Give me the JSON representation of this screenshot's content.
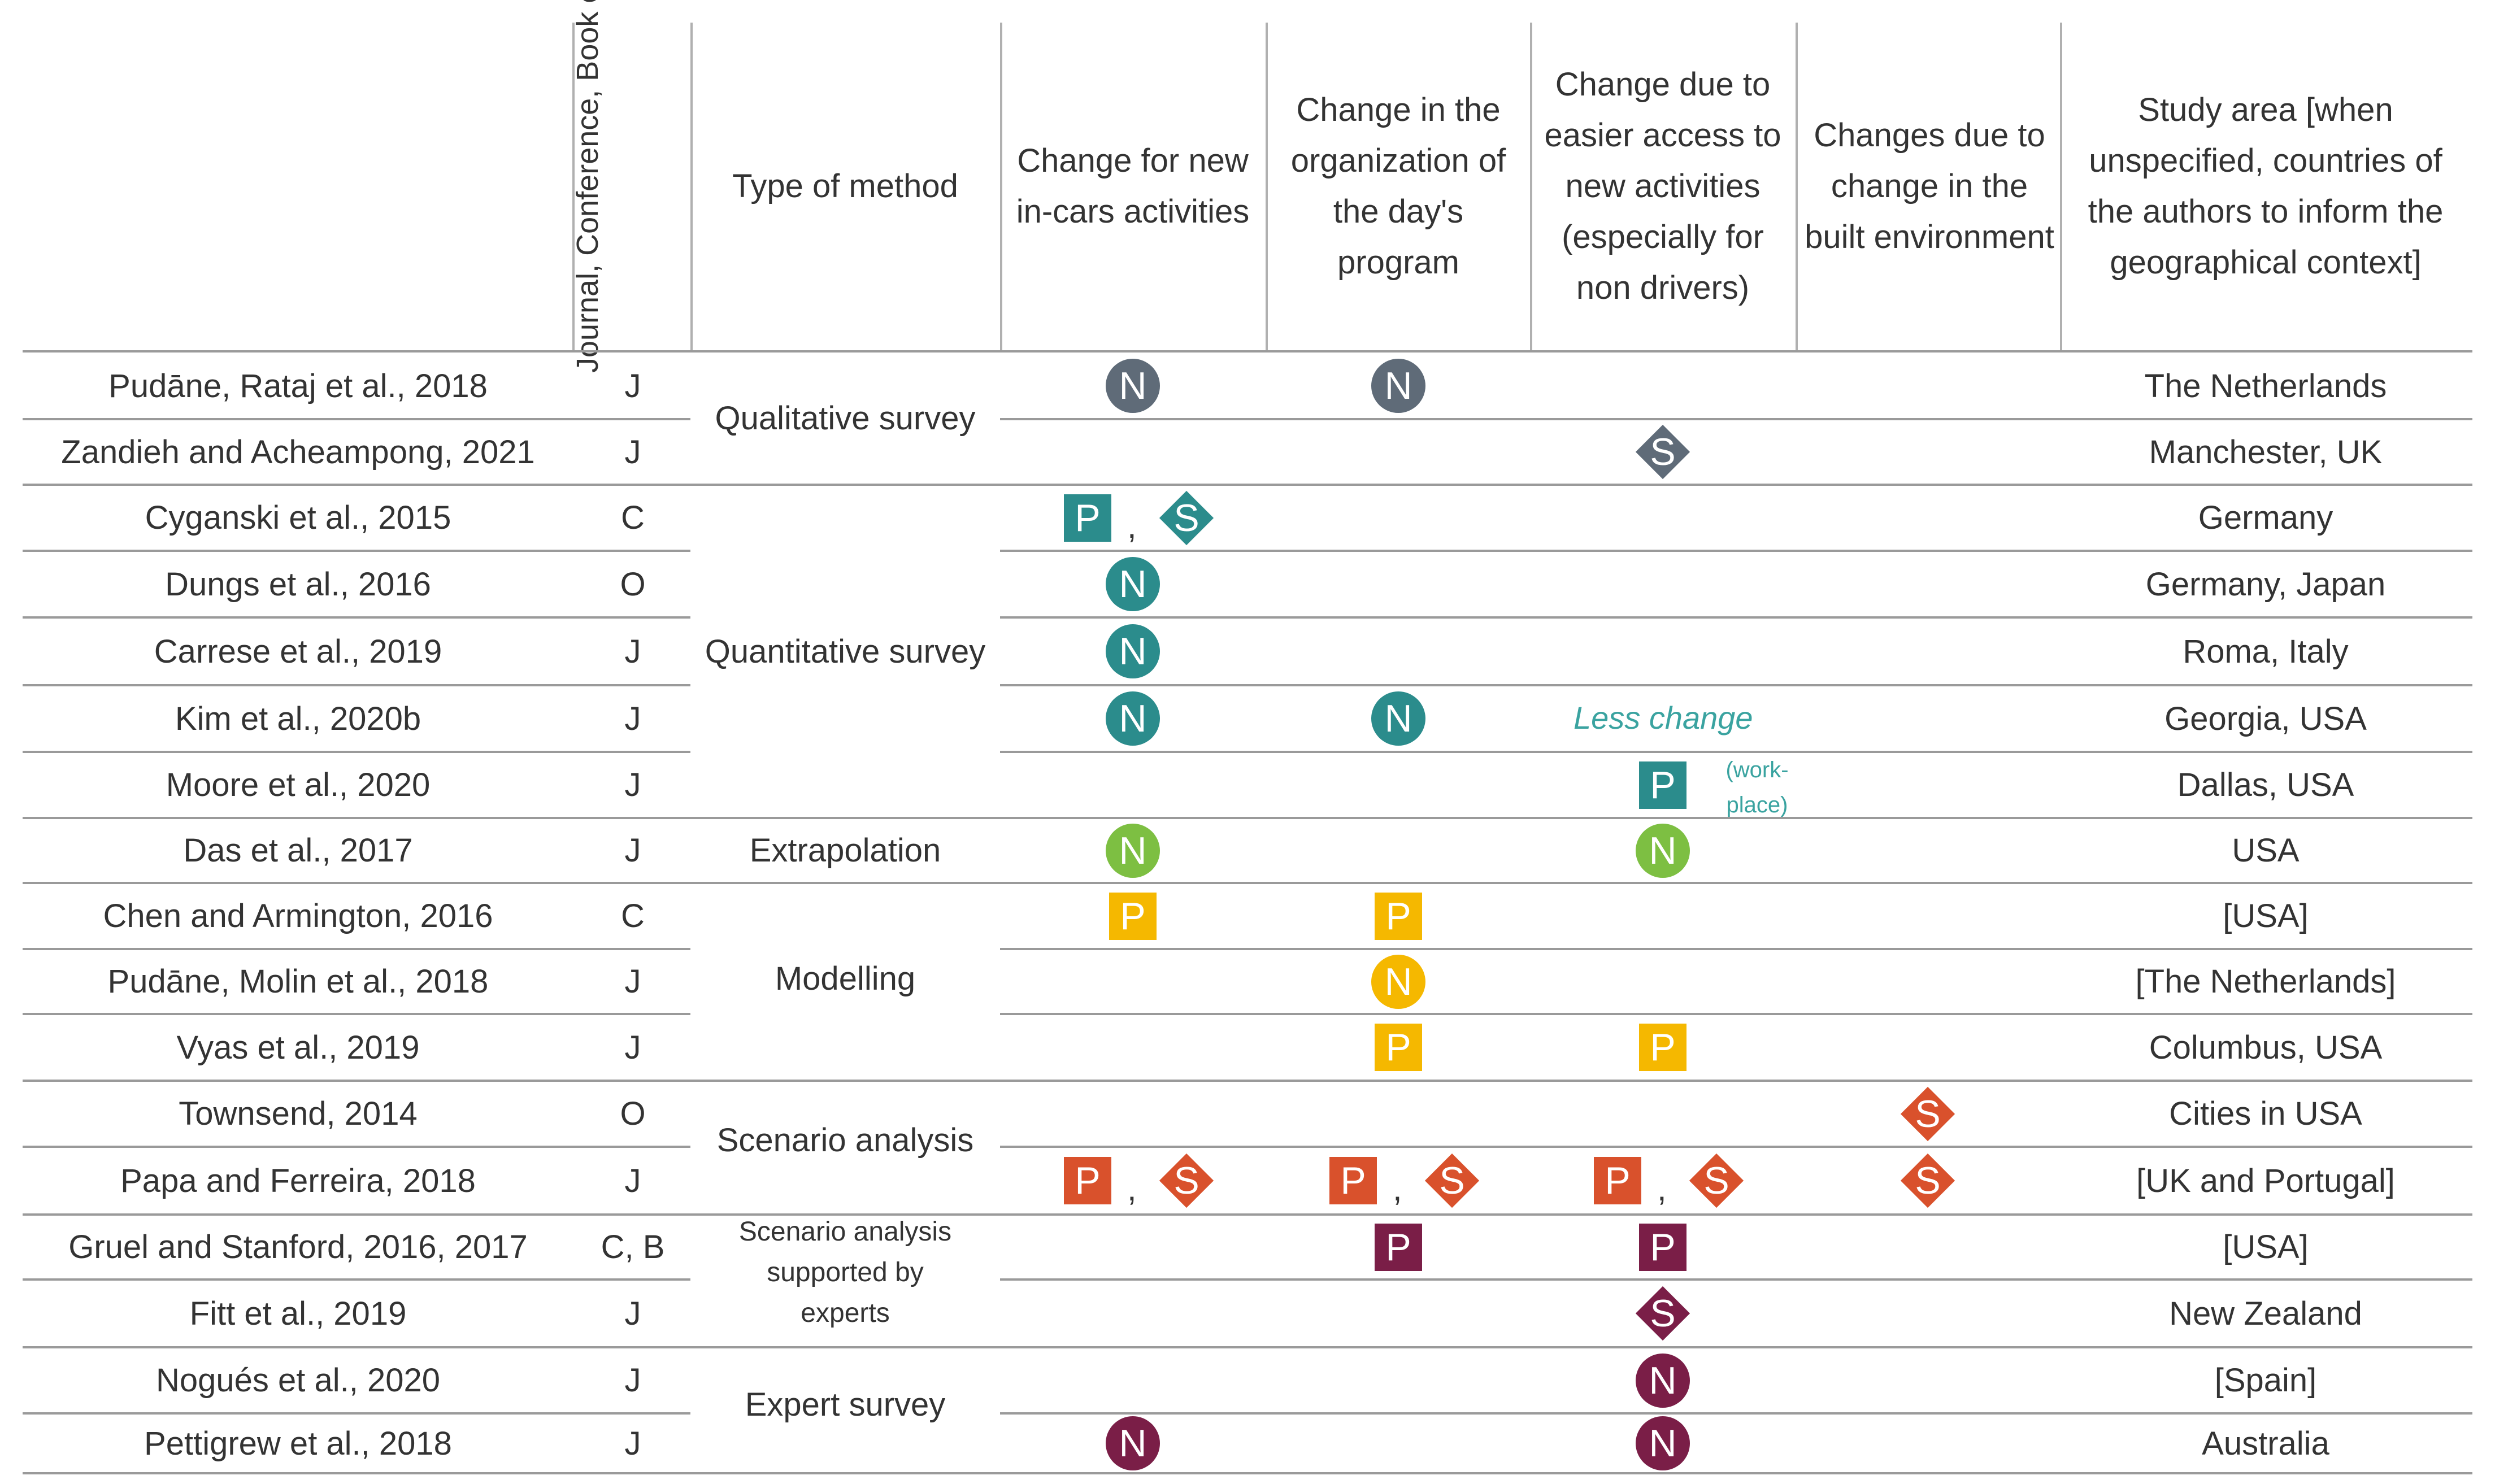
{
  "table": {
    "headers": {
      "source_type": "Journal, Conference, Book or Other",
      "method": "Type of method",
      "col1": "Change for new in-cars activities",
      "col2": "Change in the organization of the day's program",
      "col3": "Change due to easier access to new activities (especially for non drivers)",
      "col4": "Changes due to change in the built environment",
      "area": "Study area [when unspecified, countries of the authors to inform the geographical context]"
    },
    "rows": [
      {
        "study": "Pudāne, Rataj et al., 2018",
        "type": "J",
        "area": "The Netherlands"
      },
      {
        "study": "Zandieh and Acheampong, 2021",
        "type": "J",
        "area": "Manchester, UK"
      },
      {
        "study": "Cyganski et al., 2015",
        "type": "C",
        "area": "Germany"
      },
      {
        "study": "Dungs et al., 2016",
        "type": "O",
        "area": "Germany, Japan"
      },
      {
        "study": "Carrese et al., 2019",
        "type": "J",
        "area": "Roma, Italy"
      },
      {
        "study": "Kim et al., 2020b",
        "type": "J",
        "area": "Georgia, USA"
      },
      {
        "study": "Moore et al., 2020",
        "type": "J",
        "area": "Dallas, USA"
      },
      {
        "study": "Das et al., 2017",
        "type": "J",
        "area": "USA"
      },
      {
        "study": "Chen and Armington, 2016",
        "type": "C",
        "area": "[USA]"
      },
      {
        "study": "Pudāne, Molin et al., 2018",
        "type": "J",
        "area": "[The Netherlands]"
      },
      {
        "study": "Vyas et al., 2019",
        "type": "J",
        "area": "Columbus, USA"
      },
      {
        "study": "Townsend, 2014",
        "type": "O",
        "area": "Cities in USA"
      },
      {
        "study": "Papa and Ferreira, 2018",
        "type": "J",
        "area": "[UK and Portugal]"
      },
      {
        "study": "Gruel and Stanford, 2016, 2017",
        "type": "C, B",
        "area": "[USA]"
      },
      {
        "study": "Fitt et al., 2019",
        "type": "J",
        "area": "New Zealand"
      },
      {
        "study": "Nogués et al., 2020",
        "type": "J",
        "area": "[Spain]"
      },
      {
        "study": "Pettigrew et al., 2018",
        "type": "J",
        "area": "Australia"
      }
    ],
    "methods": [
      {
        "label": "Qualitative survey"
      },
      {
        "label": "Quantitative survey"
      },
      {
        "label": "Extrapolation"
      },
      {
        "label": "Modelling"
      },
      {
        "label": "Scenario analysis"
      },
      {
        "label": "Scenario analysis supported by experts"
      },
      {
        "label": "Expert survey"
      }
    ],
    "marker_colors": {
      "grey": "#5f6b78",
      "teal": "#2b8c8c",
      "green": "#7dbf42",
      "yellow": "#f5b800",
      "orange": "#d9512c",
      "plum": "#7a1e47"
    },
    "markers": [
      {
        "row": 0,
        "col": 1,
        "symbol": "N",
        "color": "grey"
      },
      {
        "row": 0,
        "col": 2,
        "symbol": "N",
        "color": "grey"
      },
      {
        "row": 1,
        "col": 3,
        "symbol": "S",
        "color": "grey"
      },
      {
        "row": 2,
        "col": 1,
        "symbol": "P",
        "color": "teal",
        "pair": "left"
      },
      {
        "row": 2,
        "col": 1,
        "symbol": "S",
        "color": "teal",
        "pair": "right"
      },
      {
        "row": 3,
        "col": 1,
        "symbol": "N",
        "color": "teal"
      },
      {
        "row": 4,
        "col": 1,
        "symbol": "N",
        "color": "teal"
      },
      {
        "row": 5,
        "col": 1,
        "symbol": "N",
        "color": "teal"
      },
      {
        "row": 5,
        "col": 2,
        "symbol": "N",
        "color": "teal"
      },
      {
        "row": 6,
        "col": 3,
        "symbol": "P",
        "color": "teal"
      },
      {
        "row": 7,
        "col": 1,
        "symbol": "N",
        "color": "green"
      },
      {
        "row": 7,
        "col": 3,
        "symbol": "N",
        "color": "green"
      },
      {
        "row": 8,
        "col": 1,
        "symbol": "P",
        "color": "yellow"
      },
      {
        "row": 8,
        "col": 2,
        "symbol": "P",
        "color": "yellow"
      },
      {
        "row": 9,
        "col": 2,
        "symbol": "N",
        "color": "yellow"
      },
      {
        "row": 10,
        "col": 2,
        "symbol": "P",
        "color": "yellow"
      },
      {
        "row": 10,
        "col": 3,
        "symbol": "P",
        "color": "yellow"
      },
      {
        "row": 11,
        "col": 4,
        "symbol": "S",
        "color": "orange"
      },
      {
        "row": 12,
        "col": 1,
        "symbol": "P",
        "color": "orange",
        "pair": "left"
      },
      {
        "row": 12,
        "col": 1,
        "symbol": "S",
        "color": "orange",
        "pair": "right"
      },
      {
        "row": 12,
        "col": 2,
        "symbol": "P",
        "color": "orange",
        "pair": "left"
      },
      {
        "row": 12,
        "col": 2,
        "symbol": "S",
        "color": "orange",
        "pair": "right"
      },
      {
        "row": 12,
        "col": 3,
        "symbol": "P",
        "color": "orange",
        "pair": "left"
      },
      {
        "row": 12,
        "col": 3,
        "symbol": "S",
        "color": "orange",
        "pair": "right"
      },
      {
        "row": 12,
        "col": 4,
        "symbol": "S",
        "color": "orange"
      },
      {
        "row": 13,
        "col": 2,
        "symbol": "P",
        "color": "plum"
      },
      {
        "row": 13,
        "col": 3,
        "symbol": "P",
        "color": "plum"
      },
      {
        "row": 14,
        "col": 3,
        "symbol": "S",
        "color": "plum"
      },
      {
        "row": 15,
        "col": 3,
        "symbol": "N",
        "color": "plum"
      },
      {
        "row": 16,
        "col": 1,
        "symbol": "N",
        "color": "plum"
      },
      {
        "row": 16,
        "col": 3,
        "symbol": "N",
        "color": "plum"
      }
    ],
    "pair_separator": ",",
    "annotations": {
      "less_change": "Less change",
      "workplace_note": "(work-place)"
    }
  }
}
